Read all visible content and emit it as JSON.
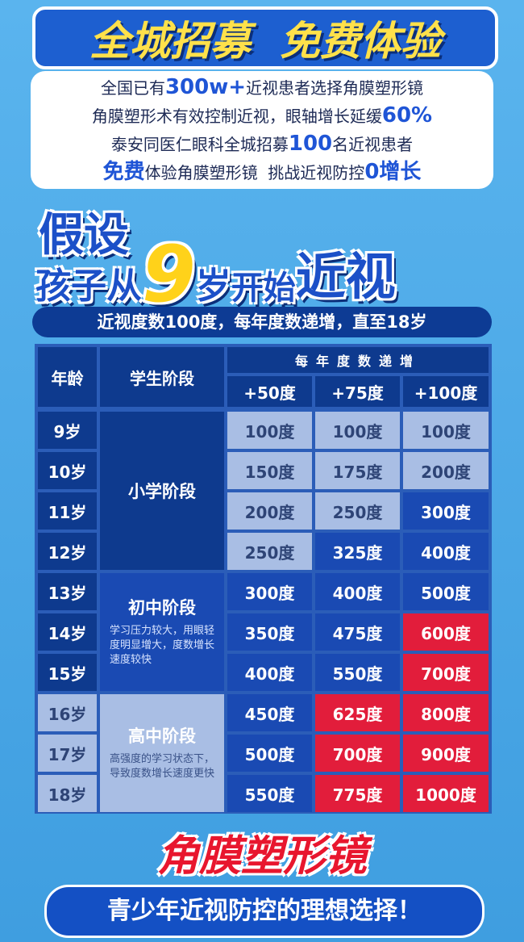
{
  "header": {
    "title": [
      "全城招募",
      "免费体验"
    ]
  },
  "intro": {
    "lines": [
      [
        "全国已有",
        "300w+",
        "近视患者选择角膜塑形镜"
      ],
      [
        "角膜塑形术有效控制近视，眼轴增长延缓",
        "60%"
      ],
      [
        "泰安同医仁眼科全城招募",
        "100",
        "名近视患者"
      ],
      [
        "免费",
        "体验角膜塑形镜  挑战近视防控",
        "0增长"
      ]
    ]
  },
  "headline": {
    "line1": "假设",
    "line2": [
      "孩子从",
      "9",
      "岁",
      "开始",
      "近视"
    ]
  },
  "banner": "近视度数100度，每年度数递增，直至18岁",
  "table": {
    "header": {
      "age": "年龄",
      "stage": "学生阶段",
      "increase": "每年度数递增",
      "columns": [
        "+50度",
        "+75度",
        "+100度"
      ]
    },
    "stages": [
      {
        "name": "小学阶段"
      },
      {
        "name": "初中阶段",
        "note": "学习压力较大，用眼轻度明显增大，度数增长速度较快"
      },
      {
        "name": "高中阶段",
        "note": "高强度的学习状态下，导致度数增长速度更快"
      }
    ],
    "rows": [
      [
        "9岁",
        "100度",
        "100度",
        "100度"
      ],
      [
        "10岁",
        "150度",
        "175度",
        "200度"
      ],
      [
        "11岁",
        "200度",
        "250度",
        "300度"
      ],
      [
        "12岁",
        "250度",
        "325度",
        "400度"
      ],
      [
        "13岁",
        "300度",
        "400度",
        "500度"
      ],
      [
        "14岁",
        "350度",
        "475度",
        "600度"
      ],
      [
        "15岁",
        "400度",
        "550度",
        "700度"
      ],
      [
        "16岁",
        "450度",
        "625度",
        "800度"
      ],
      [
        "17岁",
        "500度",
        "700度",
        "900度"
      ],
      [
        "18岁",
        "550度",
        "775度",
        "1000度"
      ]
    ]
  },
  "footer": {
    "product": "角膜塑形镜",
    "slogan": "青少年近视防控的理想选择！"
  }
}
